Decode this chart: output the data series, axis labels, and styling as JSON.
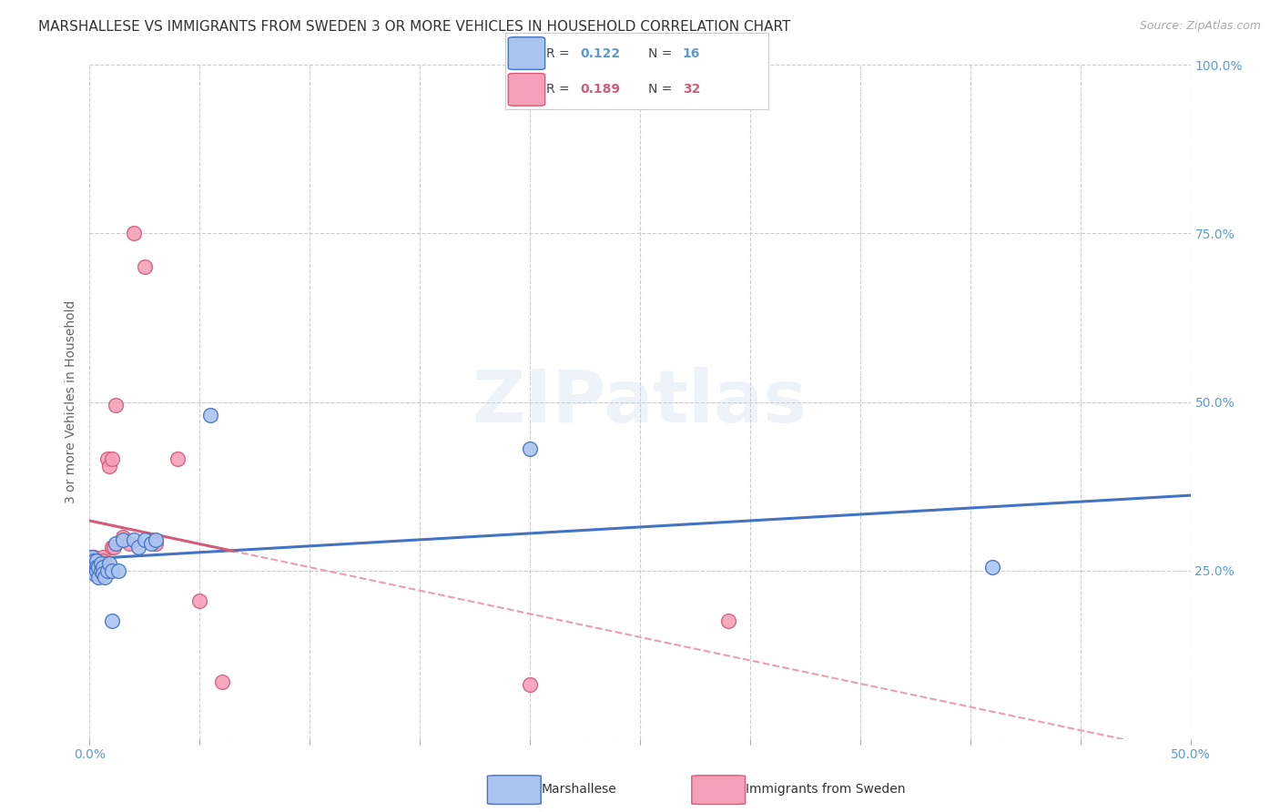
{
  "title": "MARSHALLESE VS IMMIGRANTS FROM SWEDEN 3 OR MORE VEHICLES IN HOUSEHOLD CORRELATION CHART",
  "source": "Source: ZipAtlas.com",
  "ylabel": "3 or more Vehicles in Household",
  "xlim": [
    0.0,
    0.5
  ],
  "ylim": [
    0.0,
    1.0
  ],
  "xtick_positions": [
    0.0,
    0.05,
    0.1,
    0.15,
    0.2,
    0.25,
    0.3,
    0.35,
    0.4,
    0.45,
    0.5
  ],
  "xticklabels": [
    "0.0%",
    "",
    "",
    "",
    "",
    "",
    "",
    "",
    "",
    "",
    "50.0%"
  ],
  "ytick_positions": [
    0.0,
    0.25,
    0.5,
    0.75,
    1.0
  ],
  "yticklabels": [
    "",
    "25.0%",
    "50.0%",
    "75.0%",
    "100.0%"
  ],
  "watermark": "ZIPatlas",
  "marshallese_color": "#aac4f0",
  "sweden_color": "#f5a0b8",
  "marshallese_edge_color": "#4472c4",
  "sweden_edge_color": "#d45c78",
  "marshallese_line_color": "#4472c4",
  "sweden_line_color": "#d45c78",
  "sweden_dash_color": "#e8a0b0",
  "tick_color": "#5b9bd5",
  "marshallese_x": [
    0.001,
    0.001,
    0.002,
    0.002,
    0.002,
    0.003,
    0.003,
    0.003,
    0.004,
    0.004,
    0.005,
    0.005,
    0.006,
    0.006,
    0.007,
    0.008,
    0.009,
    0.01,
    0.01,
    0.012,
    0.013,
    0.015,
    0.02,
    0.022,
    0.025,
    0.028,
    0.03,
    0.055,
    0.2,
    0.41
  ],
  "marshallese_y": [
    0.27,
    0.25,
    0.265,
    0.255,
    0.245,
    0.265,
    0.255,
    0.25,
    0.255,
    0.24,
    0.26,
    0.25,
    0.255,
    0.245,
    0.24,
    0.25,
    0.26,
    0.25,
    0.175,
    0.29,
    0.25,
    0.295,
    0.295,
    0.285,
    0.295,
    0.29,
    0.295,
    0.48,
    0.43,
    0.255
  ],
  "sweden_x": [
    0.001,
    0.001,
    0.002,
    0.002,
    0.003,
    0.003,
    0.004,
    0.004,
    0.005,
    0.005,
    0.006,
    0.006,
    0.006,
    0.007,
    0.007,
    0.008,
    0.008,
    0.009,
    0.01,
    0.01,
    0.011,
    0.012,
    0.015,
    0.018,
    0.02,
    0.025,
    0.03,
    0.04,
    0.05,
    0.06,
    0.2,
    0.29
  ],
  "sweden_y": [
    0.27,
    0.255,
    0.27,
    0.255,
    0.26,
    0.255,
    0.255,
    0.265,
    0.265,
    0.255,
    0.27,
    0.255,
    0.265,
    0.26,
    0.255,
    0.255,
    0.415,
    0.405,
    0.415,
    0.285,
    0.285,
    0.495,
    0.3,
    0.29,
    0.75,
    0.7,
    0.29,
    0.415,
    0.205,
    0.085,
    0.08,
    0.175
  ],
  "title_fontsize": 11,
  "axis_label_fontsize": 10,
  "tick_fontsize": 10,
  "source_fontsize": 9
}
